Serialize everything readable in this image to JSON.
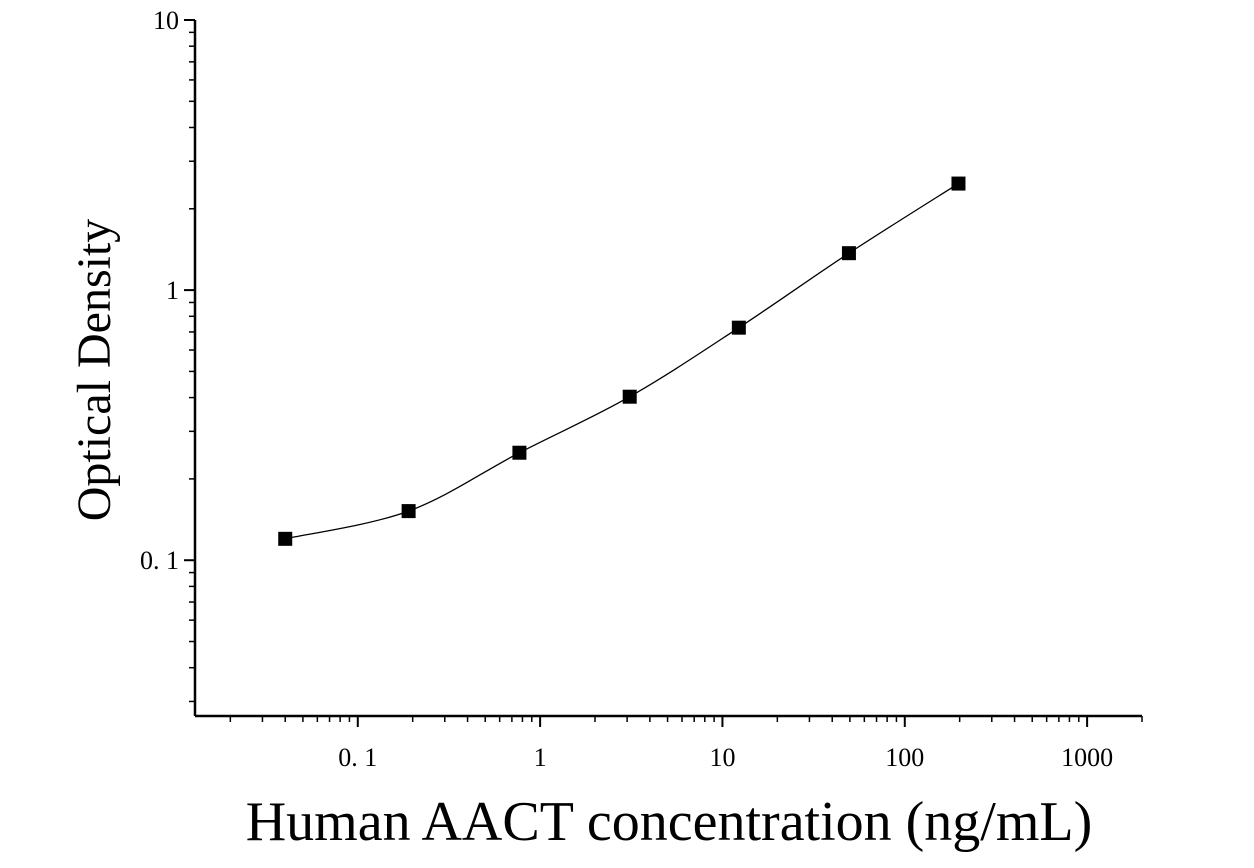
{
  "chart_data": {
    "type": "scatter",
    "title": "",
    "xlabel": "Human AACT concentration (ng/mL)",
    "ylabel": "Optical Density",
    "x_scale": "log",
    "y_scale": "log",
    "xlim": [
      0.0128,
      2000
    ],
    "ylim": [
      0.0265,
      10
    ],
    "x_ticks": [
      {
        "value": 0.1,
        "label": "0. 1"
      },
      {
        "value": 1,
        "label": "1"
      },
      {
        "value": 10,
        "label": "10"
      },
      {
        "value": 100,
        "label": "100"
      },
      {
        "value": 1000,
        "label": "1000"
      }
    ],
    "y_ticks": [
      {
        "value": 0.1,
        "label": "0. 1"
      },
      {
        "value": 1,
        "label": "1"
      },
      {
        "value": 10,
        "label": "10"
      }
    ],
    "grid": false,
    "legend": "none",
    "marker": "square",
    "fit_curve": true,
    "series": [
      {
        "x": [
          0.04,
          0.19,
          0.77,
          3.1,
          12.3,
          49.4,
          197
        ],
        "y": [
          0.12,
          0.152,
          0.25,
          0.403,
          0.726,
          1.37,
          2.48
        ]
      }
    ]
  }
}
